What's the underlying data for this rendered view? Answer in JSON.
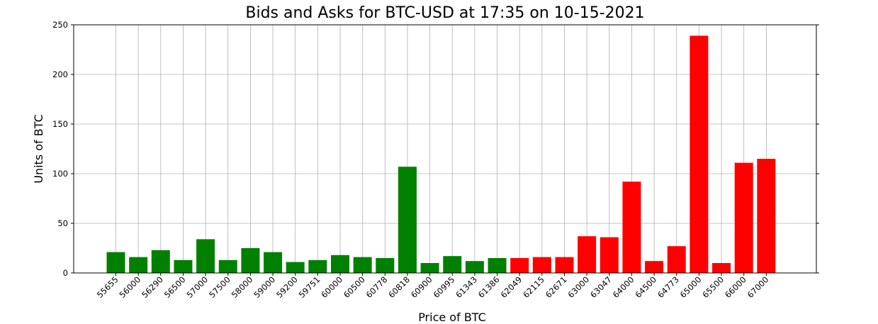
{
  "chart_data": {
    "type": "bar",
    "title": "Bids and Asks for BTC-USD at 17:35 on 10-15-2021",
    "xlabel": "Price of BTC",
    "ylabel": "Units of BTC",
    "ylim": [
      0,
      250
    ],
    "yticks": [
      0,
      50,
      100,
      150,
      200,
      250
    ],
    "grid": true,
    "categories": [
      "55655",
      "56000",
      "56290",
      "56500",
      "57000",
      "57500",
      "58000",
      "59000",
      "59200",
      "59751",
      "60000",
      "60500",
      "60778",
      "60818",
      "60900",
      "60995",
      "61343",
      "61386",
      "62049",
      "62115",
      "62671",
      "63000",
      "63047",
      "64000",
      "64500",
      "64773",
      "65000",
      "65500",
      "66000",
      "67000"
    ],
    "values": [
      21,
      16,
      23,
      13,
      34,
      13,
      25,
      21,
      11,
      13,
      18,
      16,
      15,
      107,
      10,
      17,
      12,
      15,
      15,
      16,
      16,
      37,
      36,
      92,
      12,
      27,
      239,
      10,
      111,
      115
    ],
    "bar_colors": [
      "#008000",
      "#008000",
      "#008000",
      "#008000",
      "#008000",
      "#008000",
      "#008000",
      "#008000",
      "#008000",
      "#008000",
      "#008000",
      "#008000",
      "#008000",
      "#008000",
      "#008000",
      "#008000",
      "#008000",
      "#008000",
      "#ff0000",
      "#ff0000",
      "#ff0000",
      "#ff0000",
      "#ff0000",
      "#ff0000",
      "#ff0000",
      "#ff0000",
      "#ff0000",
      "#ff0000",
      "#ff0000",
      "#ff0000"
    ]
  }
}
